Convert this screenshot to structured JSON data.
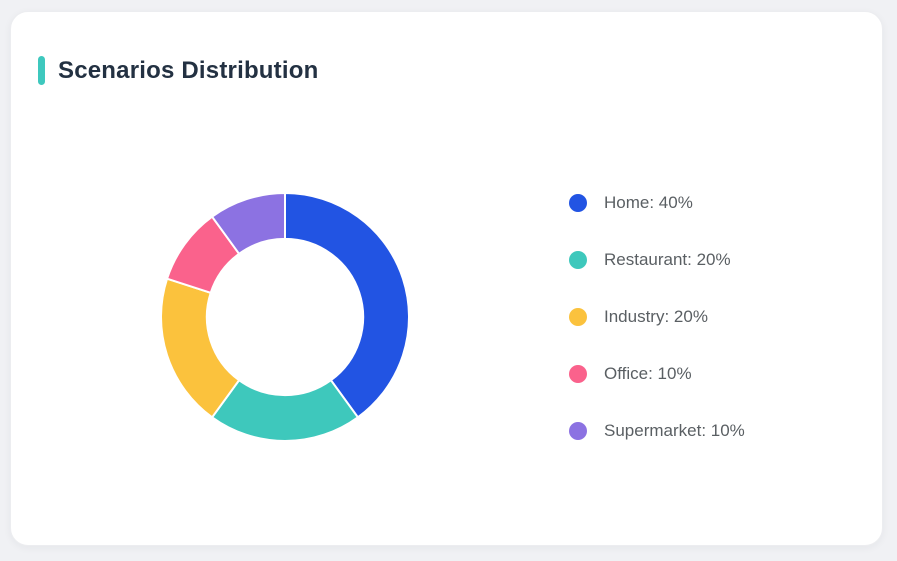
{
  "page": {
    "background_color": "#F0F1F4"
  },
  "header": {
    "title": "Scenarios Distribution",
    "accent_color": "#3EC8BE"
  },
  "chart_data": {
    "type": "pie",
    "subtype": "donut",
    "title": "Scenarios Distribution",
    "categories": [
      "Home",
      "Restaurant",
      "Industry",
      "Office",
      "Supermarket"
    ],
    "values": [
      40,
      20,
      20,
      10,
      10
    ],
    "unit": "%",
    "colors": [
      "#2254E3",
      "#3EC8BC",
      "#FBC23D",
      "#FA628C",
      "#8C72E2"
    ],
    "start_angle_deg": 0,
    "direction": "clockwise",
    "inner_radius_ratio": 0.63,
    "segment_gap_color": "#FFFFFF",
    "legend_position": "right",
    "legend": [
      {
        "text": "Home: 40%"
      },
      {
        "text": "Restaurant: 20%"
      },
      {
        "text": "Industry: 20%"
      },
      {
        "text": "Office: 10%"
      },
      {
        "text": "Supermarket: 10%"
      }
    ]
  }
}
